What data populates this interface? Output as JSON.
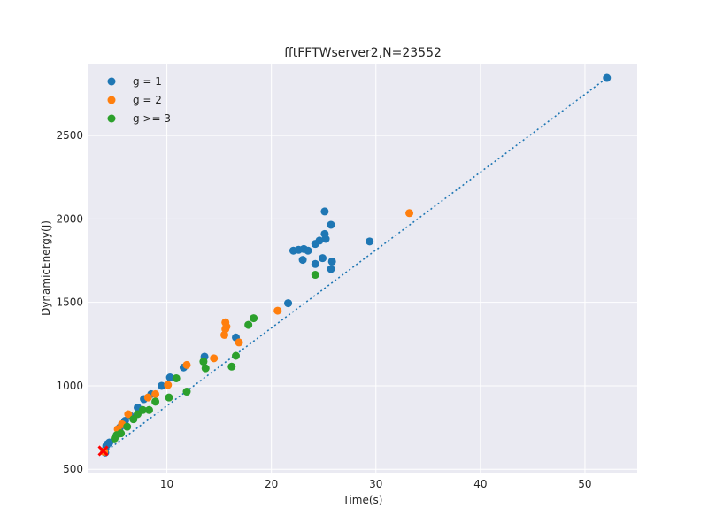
{
  "chart_data": {
    "type": "scatter",
    "title": "fftFFTWserver2,N=23552",
    "xlabel": "Time(s)",
    "ylabel": "DynamicEnergy(J)",
    "xlim": [
      2.5,
      55
    ],
    "ylim": [
      480,
      2930
    ],
    "xticks": [
      10,
      20,
      30,
      40,
      50
    ],
    "yticks": [
      500,
      1000,
      1500,
      2000,
      2500
    ],
    "grid": true,
    "legend_position": "top-left",
    "series": [
      {
        "name": "g = 1",
        "color": "#1f77b4",
        "points": [
          [
            4.0,
            610
          ],
          [
            4.2,
            640
          ],
          [
            4.5,
            660
          ],
          [
            4.3,
            650
          ],
          [
            4.1,
            600
          ],
          [
            5.5,
            750
          ],
          [
            6.0,
            790
          ],
          [
            6.5,
            820
          ],
          [
            7.2,
            870
          ],
          [
            7.8,
            920
          ],
          [
            8.5,
            950
          ],
          [
            9.5,
            1000
          ],
          [
            10.3,
            1050
          ],
          [
            11.6,
            1110
          ],
          [
            13.6,
            1175
          ],
          [
            16.6,
            1290
          ],
          [
            21.6,
            1495
          ],
          [
            22.1,
            1810
          ],
          [
            22.6,
            1815
          ],
          [
            23.1,
            1820
          ],
          [
            23.5,
            1810
          ],
          [
            23.0,
            1755
          ],
          [
            24.2,
            1730
          ],
          [
            24.2,
            1850
          ],
          [
            24.6,
            1870
          ],
          [
            25.2,
            1880
          ],
          [
            25.1,
            1910
          ],
          [
            25.1,
            2045
          ],
          [
            25.7,
            1965
          ],
          [
            24.9,
            1765
          ],
          [
            25.8,
            1745
          ],
          [
            25.7,
            1700
          ],
          [
            29.4,
            1865
          ],
          [
            52.1,
            2845
          ]
        ]
      },
      {
        "name": "g = 2",
        "color": "#ff7f0e",
        "points": [
          [
            4.0,
            605
          ],
          [
            5.3,
            740
          ],
          [
            5.7,
            770
          ],
          [
            6.3,
            830
          ],
          [
            8.2,
            930
          ],
          [
            8.9,
            950
          ],
          [
            10.1,
            1005
          ],
          [
            11.9,
            1125
          ],
          [
            14.5,
            1165
          ],
          [
            15.5,
            1305
          ],
          [
            15.6,
            1340
          ],
          [
            15.7,
            1355
          ],
          [
            15.6,
            1380
          ],
          [
            16.9,
            1260
          ],
          [
            20.6,
            1450
          ],
          [
            33.2,
            2035
          ]
        ]
      },
      {
        "name": "g >= 3",
        "color": "#2ca02c",
        "points": [
          [
            5.0,
            685
          ],
          [
            5.2,
            705
          ],
          [
            5.6,
            715
          ],
          [
            6.2,
            755
          ],
          [
            6.8,
            800
          ],
          [
            7.2,
            830
          ],
          [
            7.7,
            855
          ],
          [
            8.3,
            855
          ],
          [
            8.9,
            905
          ],
          [
            10.2,
            930
          ],
          [
            10.9,
            1045
          ],
          [
            11.9,
            965
          ],
          [
            13.5,
            1145
          ],
          [
            13.7,
            1105
          ],
          [
            16.2,
            1115
          ],
          [
            16.6,
            1180
          ],
          [
            17.8,
            1365
          ],
          [
            18.3,
            1405
          ],
          [
            24.2,
            1665
          ]
        ]
      }
    ],
    "trendline": {
      "style": "dotted",
      "color": "#1f77b4",
      "from": [
        4.0,
        600
      ],
      "to": [
        52.1,
        2845
      ]
    },
    "best_point": {
      "color": "#ff0000",
      "marker": "x",
      "x": 3.9,
      "y": 610
    }
  }
}
